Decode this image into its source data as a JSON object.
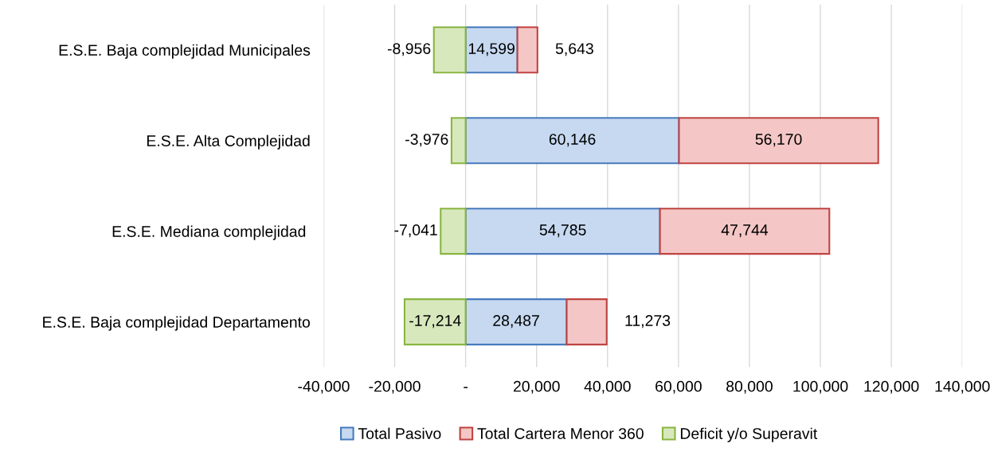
{
  "chart_data": {
    "type": "bar",
    "orientation": "horizontal",
    "stacked": true,
    "categories": [
      "E.S.E. Baja complejidad Municipales",
      "E.S.E. Alta Complejidad",
      "E.S.E. Mediana complejidad ",
      "E.S.E. Baja complejidad Departamento"
    ],
    "series": [
      {
        "name": "Total Pasivo",
        "color": "#c6d9f1",
        "values": [
          14599,
          60146,
          54785,
          28487
        ],
        "value_labels": [
          "14,599",
          "60,146",
          "54,785",
          "28,487"
        ]
      },
      {
        "name": "Total Cartera Menor 360",
        "color": "#f4c7c6",
        "values": [
          5643,
          56170,
          47744,
          11273
        ],
        "value_labels": [
          "5,643",
          "56,170",
          "47,744",
          "11,273"
        ]
      },
      {
        "name": "Deficit y/o Superavit",
        "color": "#d8e8bd",
        "values": [
          -8956,
          -3976,
          -7041,
          -17214
        ],
        "value_labels": [
          "-8,956",
          "-3,976",
          "-7,041",
          "-17,214"
        ]
      }
    ],
    "xlim": [
      -40000,
      140000
    ],
    "xticks": [
      {
        "value": -40000,
        "label": "-40,000"
      },
      {
        "value": -20000,
        "label": "-20,000"
      },
      {
        "value": 0,
        "label": "-"
      },
      {
        "value": 20000,
        "label": "20,000"
      },
      {
        "value": 40000,
        "label": "40,000"
      },
      {
        "value": 60000,
        "label": "60,000"
      },
      {
        "value": 80000,
        "label": "80,000"
      },
      {
        "value": 100000,
        "label": "100,000"
      },
      {
        "value": 120000,
        "label": "120,000"
      },
      {
        "value": 140000,
        "label": "140,000"
      }
    ],
    "grid": "x",
    "legend": "bottom"
  }
}
